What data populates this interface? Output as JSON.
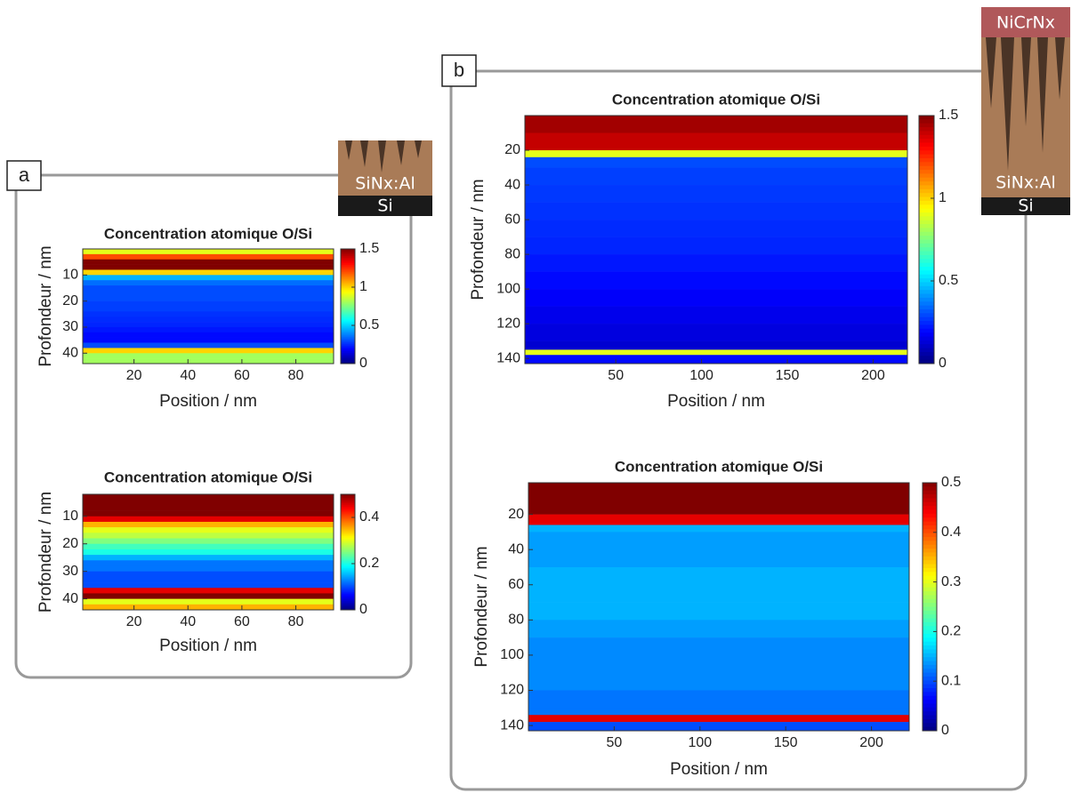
{
  "panels": [
    {
      "label": "a",
      "layers": [
        "SiNx:Al",
        "Si"
      ]
    },
    {
      "label": "b",
      "layers": [
        "NiCrNx",
        "SiNx:Al",
        "Si"
      ]
    }
  ],
  "chart_data": [
    {
      "type": "heatmap",
      "title": "Concentration atomique O/Si",
      "xlabel": "Position  /  nm",
      "ylabel": "Profondeur  /  nm",
      "xlim": [
        1,
        94
      ],
      "xticks": [
        20,
        40,
        60,
        80
      ],
      "ylim": [
        0,
        44
      ],
      "yticks": [
        10,
        20,
        30,
        40
      ],
      "clim": [
        0,
        1.5
      ],
      "cticks": [
        0,
        0.5,
        1,
        1.5
      ],
      "colormap": "jet",
      "ybins": [
        0,
        2,
        4,
        6,
        8,
        10,
        12,
        14,
        16,
        18,
        20,
        22,
        24,
        26,
        28,
        30,
        32,
        34,
        36,
        38,
        40,
        42,
        44
      ],
      "values": [
        0.9,
        1.2,
        1.5,
        1.5,
        1.0,
        0.45,
        0.35,
        0.3,
        0.3,
        0.3,
        0.28,
        0.28,
        0.26,
        0.25,
        0.24,
        0.22,
        0.2,
        0.2,
        0.3,
        1.0,
        0.8,
        0.8
      ]
    },
    {
      "type": "heatmap",
      "title": "Concentration atomique O/Si",
      "xlabel": "Position  /  nm",
      "ylabel": "Profondeur  /  nm",
      "xlim": [
        1,
        94
      ],
      "xticks": [
        20,
        40,
        60,
        80
      ],
      "ylim": [
        2,
        44
      ],
      "yticks": [
        10,
        20,
        30,
        40
      ],
      "clim": [
        0,
        0.5
      ],
      "cticks": [
        0,
        0.2,
        0.4
      ],
      "colormap": "jet",
      "ybins": [
        2,
        4,
        6,
        8,
        10,
        12,
        14,
        16,
        18,
        20,
        22,
        24,
        26,
        28,
        30,
        32,
        34,
        36,
        38,
        40,
        42,
        44
      ],
      "values": [
        0.5,
        0.5,
        0.5,
        0.5,
        0.45,
        0.35,
        0.3,
        0.28,
        0.25,
        0.22,
        0.2,
        0.15,
        0.12,
        0.12,
        0.1,
        0.1,
        0.1,
        0.45,
        0.5,
        0.3,
        0.35
      ]
    },
    {
      "type": "heatmap",
      "title": "Concentration atomique O/Si",
      "xlabel": "Position  /  nm",
      "ylabel": "Profondeur  /  nm",
      "xlim": [
        -3,
        220
      ],
      "xticks": [
        50,
        100,
        150,
        200
      ],
      "ylim": [
        0,
        143
      ],
      "yticks": [
        20,
        40,
        60,
        80,
        100,
        120,
        140
      ],
      "clim": [
        0,
        1.5
      ],
      "cticks": [
        0,
        0.5,
        1,
        1.5
      ],
      "colormap": "jet",
      "ybins": [
        0,
        10,
        20,
        24,
        30,
        40,
        50,
        60,
        70,
        80,
        90,
        100,
        110,
        120,
        130,
        135,
        138,
        143
      ],
      "values": [
        1.45,
        1.4,
        0.9,
        0.3,
        0.28,
        0.27,
        0.26,
        0.25,
        0.24,
        0.22,
        0.2,
        0.18,
        0.16,
        0.14,
        0.12,
        0.9,
        0.2
      ]
    },
    {
      "type": "heatmap",
      "title": "Concentration atomique O/Si",
      "xlabel": "Position  /  nm",
      "ylabel": "Profondeur  /  nm",
      "xlim": [
        0,
        222
      ],
      "xticks": [
        50,
        100,
        150,
        200
      ],
      "ylim": [
        2,
        143
      ],
      "yticks": [
        20,
        40,
        60,
        80,
        100,
        120,
        140
      ],
      "clim": [
        0,
        0.5
      ],
      "cticks": [
        0,
        0.1,
        0.2,
        0.3,
        0.4,
        0.5
      ],
      "colormap": "jet",
      "ybins": [
        2,
        10,
        20,
        26,
        30,
        40,
        50,
        60,
        70,
        80,
        90,
        100,
        110,
        120,
        130,
        134,
        138,
        143
      ],
      "values": [
        0.5,
        0.5,
        0.45,
        0.15,
        0.14,
        0.14,
        0.15,
        0.15,
        0.15,
        0.14,
        0.13,
        0.13,
        0.13,
        0.12,
        0.12,
        0.45,
        0.1
      ]
    }
  ]
}
